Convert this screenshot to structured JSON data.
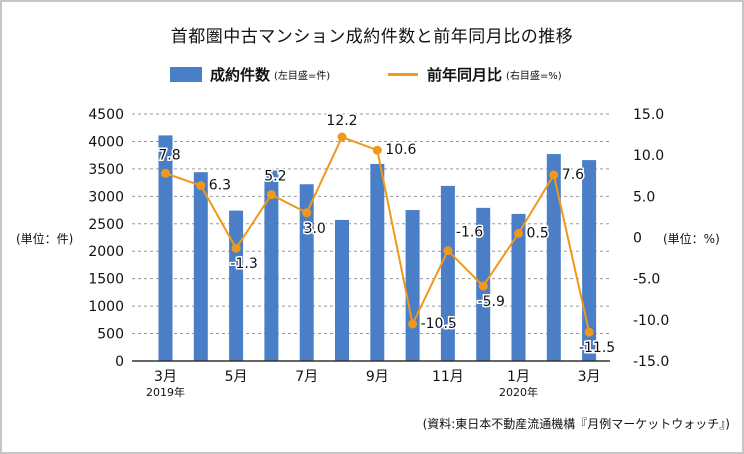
{
  "chart_data": {
    "type": "bar+line",
    "title": "首都圏中古マンション成約件数と前年同月比の推移",
    "categories": [
      "2019-03",
      "2019-04",
      "2019-05",
      "2019-06",
      "2019-07",
      "2019-08",
      "2019-09",
      "2019-10",
      "2019-11",
      "2019-12",
      "2020-01",
      "2020-02",
      "2020-03"
    ],
    "x_tick_labels": [
      {
        "index": 0,
        "label": "3月",
        "sublabel": "2019年"
      },
      {
        "index": 2,
        "label": "5月",
        "sublabel": ""
      },
      {
        "index": 4,
        "label": "7月",
        "sublabel": ""
      },
      {
        "index": 6,
        "label": "9月",
        "sublabel": ""
      },
      {
        "index": 8,
        "label": "11月",
        "sublabel": ""
      },
      {
        "index": 10,
        "label": "1月",
        "sublabel": "2020年"
      },
      {
        "index": 12,
        "label": "3月",
        "sublabel": ""
      }
    ],
    "series": [
      {
        "name": "成約件数",
        "legend_note": "(左目盛=件)",
        "type": "bar",
        "axis": "left",
        "color": "#4a7ec6",
        "values": [
          4110,
          3440,
          2740,
          3470,
          3220,
          2570,
          3590,
          2750,
          3190,
          2790,
          2680,
          3770,
          3660
        ]
      },
      {
        "name": "前年同月比",
        "legend_note": "(右目盛=%)",
        "type": "line",
        "axis": "right",
        "color": "#f0981e",
        "values": [
          7.8,
          6.3,
          -1.3,
          5.2,
          3.0,
          12.2,
          10.6,
          -10.5,
          -1.6,
          -5.9,
          0.5,
          7.6,
          -11.5
        ],
        "data_labels": [
          "7.8",
          "6.3",
          "-1.3",
          "5.2",
          "3.0",
          "12.2",
          "10.6",
          "-10.5",
          "-1.6",
          "-5.9",
          "0.5",
          "7.6",
          "-11.5"
        ]
      }
    ],
    "left_axis": {
      "label": "(単位：件)",
      "range": [
        0,
        4500
      ],
      "ticks": [
        0,
        500,
        1000,
        1500,
        2000,
        2500,
        3000,
        3500,
        4000,
        4500
      ],
      "tick_labels": [
        "0",
        "500",
        "1000",
        "1500",
        "2000",
        "2500",
        "3000",
        "3500",
        "4000",
        "4500"
      ]
    },
    "right_axis": {
      "label": "(単位：%)",
      "range": [
        -15,
        15
      ],
      "ticks": [
        -15,
        -10,
        -5,
        0,
        5,
        10,
        15
      ],
      "tick_labels": [
        "-15.0",
        "-10.0",
        "-5.0",
        "0",
        "5.0",
        "10.0",
        "15.0"
      ]
    },
    "grid": true,
    "legend_position": "top-center",
    "source_note": "(資料:東日本不動産流通機構『月例マーケットウォッチ』)"
  }
}
